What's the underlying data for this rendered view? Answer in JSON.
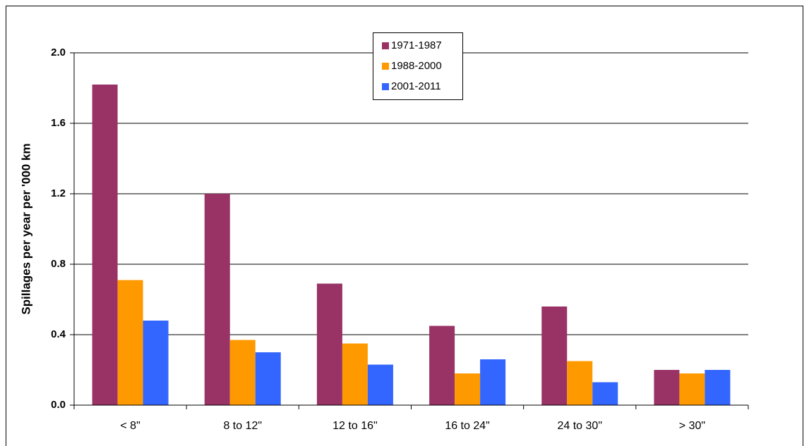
{
  "chart_data": {
    "type": "bar",
    "y_label": "Spillages per year per '000 km",
    "categories": [
      "< 8\"",
      "8 to 12\"",
      "12 to 16\"",
      "16 to 24\"",
      "24 to 30\"",
      "> 30\""
    ],
    "series": [
      {
        "name": "1971-1987",
        "color": "#993366",
        "values": [
          1.82,
          1.2,
          0.69,
          0.45,
          0.56,
          0.2
        ]
      },
      {
        "name": "1988-2000",
        "color": "#ff9900",
        "values": [
          0.71,
          0.37,
          0.35,
          0.18,
          0.25,
          0.18
        ]
      },
      {
        "name": "2001-2011",
        "color": "#3366ff",
        "values": [
          0.48,
          0.3,
          0.23,
          0.26,
          0.13,
          0.2
        ]
      }
    ],
    "ylim": [
      0,
      2
    ],
    "yticks": [
      {
        "value": 0,
        "label": "0.0"
      },
      0.4,
      0.8,
      1.2,
      1.6,
      {
        "value": 2,
        "label": "2.0"
      }
    ],
    "grid": true,
    "legend": "top"
  }
}
